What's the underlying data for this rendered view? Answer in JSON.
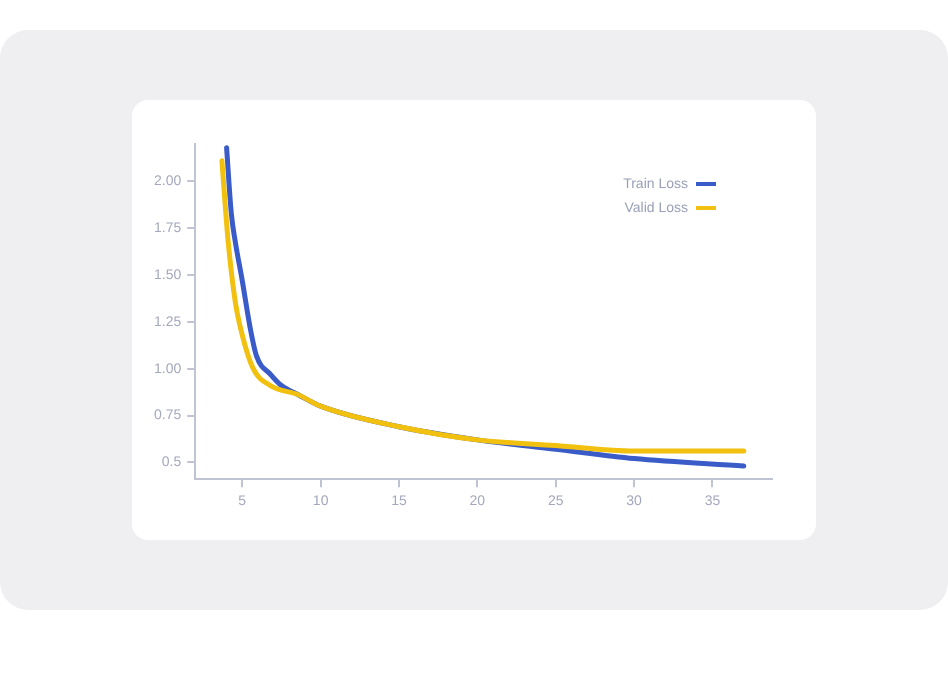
{
  "chart_data": {
    "type": "line",
    "xlim": [
      2,
      38.8
    ],
    "xticks": [
      5,
      10,
      15,
      20,
      25,
      30,
      35
    ],
    "ylim": [
      0.41,
      2.2
    ],
    "yticks": [
      {
        "value": 0.5,
        "label": "0.5"
      },
      {
        "value": 0.75,
        "label": "0.75"
      },
      {
        "value": 1,
        "label": "1.00"
      },
      {
        "value": 1.25,
        "label": "1.25"
      },
      {
        "value": 1.5,
        "label": "1.50"
      },
      {
        "value": 1.75,
        "label": "1.75"
      },
      {
        "value": 2,
        "label": "2.00"
      }
    ],
    "grid": false,
    "legend": "top right",
    "marker": "none",
    "line_style": "solid",
    "series": [
      {
        "name": "Train Loss",
        "color": "#3a5cc8",
        "x": [
          4,
          4.3,
          4.55,
          5,
          5.5,
          5.9,
          6.8,
          7.5,
          8.6,
          10,
          15,
          20,
          25,
          30,
          37
        ],
        "values": [
          2.18,
          1.83,
          1.68,
          1.47,
          1.22,
          1.07,
          0.97,
          0.91,
          0.86,
          0.8,
          0.69,
          0.62,
          0.57,
          0.52,
          0.48
        ]
      },
      {
        "name": "Valid Loss",
        "color": "#f2c00e",
        "x": [
          3.7,
          4.1,
          4.55,
          5,
          5.7,
          6.8,
          8.6,
          10,
          15,
          20,
          25,
          30,
          37
        ],
        "values": [
          2.11,
          1.68,
          1.36,
          1.18,
          1.0,
          0.91,
          0.86,
          0.8,
          0.69,
          0.62,
          0.59,
          0.56,
          0.56
        ]
      }
    ]
  }
}
